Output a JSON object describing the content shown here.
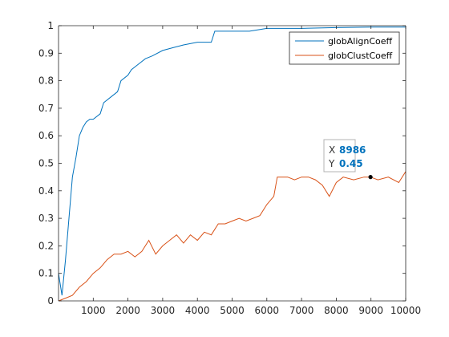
{
  "chart_data": {
    "type": "line",
    "title": "",
    "xlabel": "",
    "ylabel": "",
    "xlim": [
      0,
      10000
    ],
    "ylim": [
      0,
      1
    ],
    "x_ticks": [
      1000,
      2000,
      3000,
      4000,
      5000,
      6000,
      7000,
      8000,
      9000,
      10000
    ],
    "x_tick_labels": [
      "1000",
      "2000",
      "3000",
      "4000",
      "5000",
      "6000",
      "7000",
      "8000",
      "9000",
      "10000"
    ],
    "y_ticks": [
      0,
      0.1,
      0.2,
      0.3,
      0.4,
      0.5,
      0.6,
      0.7,
      0.8,
      0.9,
      1
    ],
    "y_tick_labels": [
      "0",
      "0.1",
      "0.2",
      "0.3",
      "0.4",
      "0.5",
      "0.6",
      "0.7",
      "0.8",
      "0.9",
      "1"
    ],
    "grid": false,
    "legend_position": "top-right",
    "series": [
      {
        "name": "globAlignCoeff",
        "color": "#0072bd",
        "points": [
          [
            0,
            0.1
          ],
          [
            100,
            0.02
          ],
          [
            200,
            0.15
          ],
          [
            300,
            0.3
          ],
          [
            400,
            0.45
          ],
          [
            500,
            0.52
          ],
          [
            600,
            0.6
          ],
          [
            700,
            0.63
          ],
          [
            800,
            0.65
          ],
          [
            900,
            0.66
          ],
          [
            1000,
            0.66
          ],
          [
            1200,
            0.68
          ],
          [
            1300,
            0.72
          ],
          [
            1500,
            0.74
          ],
          [
            1700,
            0.76
          ],
          [
            1800,
            0.8
          ],
          [
            2000,
            0.82
          ],
          [
            2100,
            0.84
          ],
          [
            2300,
            0.86
          ],
          [
            2500,
            0.88
          ],
          [
            2700,
            0.89
          ],
          [
            3000,
            0.91
          ],
          [
            3300,
            0.92
          ],
          [
            3600,
            0.93
          ],
          [
            4000,
            0.94
          ],
          [
            4400,
            0.94
          ],
          [
            4500,
            0.98
          ],
          [
            5000,
            0.98
          ],
          [
            5500,
            0.98
          ],
          [
            6000,
            0.99
          ],
          [
            7000,
            0.99
          ],
          [
            8000,
            0.993
          ],
          [
            9000,
            0.995
          ],
          [
            10000,
            0.995
          ]
        ]
      },
      {
        "name": "globClustCoeff",
        "color": "#d95319",
        "points": [
          [
            0,
            0
          ],
          [
            200,
            0.01
          ],
          [
            400,
            0.02
          ],
          [
            600,
            0.05
          ],
          [
            800,
            0.07
          ],
          [
            1000,
            0.1
          ],
          [
            1200,
            0.12
          ],
          [
            1400,
            0.15
          ],
          [
            1600,
            0.17
          ],
          [
            1800,
            0.17
          ],
          [
            2000,
            0.18
          ],
          [
            2200,
            0.16
          ],
          [
            2400,
            0.18
          ],
          [
            2600,
            0.22
          ],
          [
            2800,
            0.17
          ],
          [
            3000,
            0.2
          ],
          [
            3200,
            0.22
          ],
          [
            3400,
            0.24
          ],
          [
            3600,
            0.21
          ],
          [
            3800,
            0.24
          ],
          [
            4000,
            0.22
          ],
          [
            4200,
            0.25
          ],
          [
            4400,
            0.24
          ],
          [
            4600,
            0.28
          ],
          [
            4800,
            0.28
          ],
          [
            5000,
            0.29
          ],
          [
            5200,
            0.3
          ],
          [
            5400,
            0.29
          ],
          [
            5600,
            0.3
          ],
          [
            5800,
            0.31
          ],
          [
            6000,
            0.35
          ],
          [
            6200,
            0.38
          ],
          [
            6300,
            0.45
          ],
          [
            6600,
            0.45
          ],
          [
            6800,
            0.44
          ],
          [
            7000,
            0.45
          ],
          [
            7200,
            0.45
          ],
          [
            7400,
            0.44
          ],
          [
            7600,
            0.42
          ],
          [
            7800,
            0.38
          ],
          [
            8000,
            0.43
          ],
          [
            8200,
            0.45
          ],
          [
            8500,
            0.44
          ],
          [
            8800,
            0.45
          ],
          [
            8986,
            0.45
          ],
          [
            9200,
            0.44
          ],
          [
            9500,
            0.45
          ],
          [
            9800,
            0.43
          ],
          [
            10000,
            0.47
          ]
        ]
      }
    ],
    "datatip": {
      "x_label": "X",
      "x_value": "8986",
      "y_label": "Y",
      "y_value": "0.45",
      "x": 8986,
      "y": 0.45,
      "value_color": "#0072bd"
    }
  }
}
